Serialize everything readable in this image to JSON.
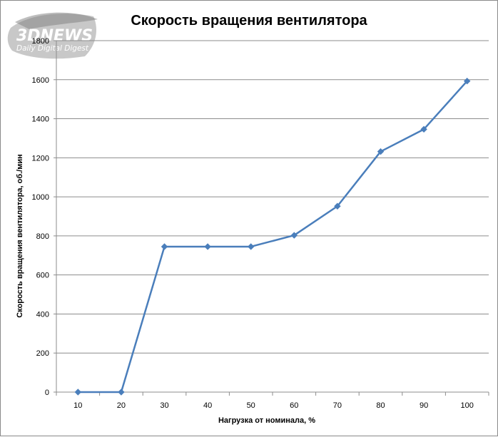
{
  "watermark": {
    "brand": "3DNEWS",
    "tagline": "Daily Digital Digest"
  },
  "chart_data": {
    "type": "line",
    "title": "Скорость вращения вентилятора",
    "xlabel": "Нагрузка  от номинала,  %",
    "ylabel": "Скорость вращения вентилятора,  об./мин",
    "categories": [
      "10",
      "20",
      "30",
      "40",
      "50",
      "60",
      "70",
      "80",
      "90",
      "100"
    ],
    "series": [
      {
        "values": [
          0,
          0,
          745,
          745,
          745,
          803,
          952,
          1232,
          1346,
          1593
        ]
      }
    ],
    "y_ticks": [
      "0",
      "200",
      "400",
      "600",
      "800",
      "1000",
      "1200",
      "1400",
      "1600",
      "1800"
    ],
    "ylim": [
      0,
      1800
    ],
    "grid": true,
    "marker": "diamond",
    "colors": {
      "series": "#4a7ebb",
      "grid": "#8c8c8c",
      "axis": "#8c8c8c"
    }
  }
}
